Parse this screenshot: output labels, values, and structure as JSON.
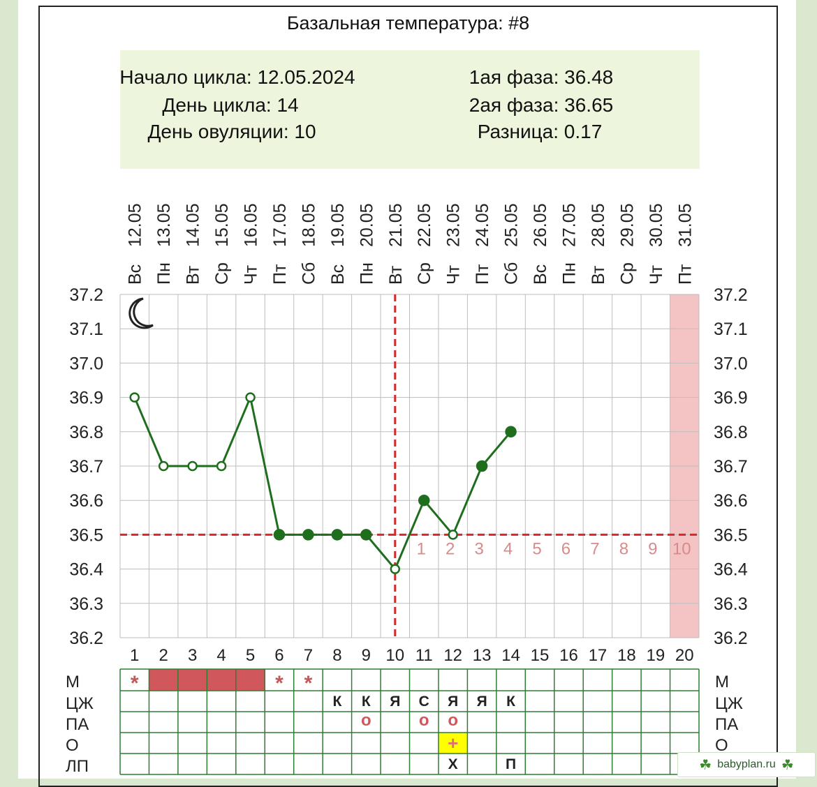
{
  "header": {
    "title": "Базальная температура: #8",
    "cycle_start": "Начало цикла: 12.05.2024",
    "cycle_day": "День цикла: 14",
    "ovulation_day": "День овуляции: 10",
    "phase1": "1ая фаза: 36.48",
    "phase2": "2ая фаза: 36.65",
    "difference": "Разница: 0.17"
  },
  "chart_data": {
    "type": "line",
    "title": "Базальная температура: #8",
    "dates": [
      "12.05",
      "13.05",
      "14.05",
      "15.05",
      "16.05",
      "17.05",
      "18.05",
      "19.05",
      "20.05",
      "21.05",
      "22.05",
      "23.05",
      "24.05",
      "25.05",
      "26.05",
      "27.05",
      "28.05",
      "29.05",
      "30.05",
      "31.05"
    ],
    "weekdays": [
      "Вс",
      "Пн",
      "Вт",
      "Ср",
      "Чт",
      "Пт",
      "Сб",
      "Вс",
      "Пн",
      "Вт",
      "Ср",
      "Чт",
      "Пт",
      "Сб",
      "Вс",
      "Пн",
      "Вт",
      "Ср",
      "Чт",
      "Пт"
    ],
    "days": [
      "1",
      "2",
      "3",
      "4",
      "5",
      "6",
      "7",
      "8",
      "9",
      "10",
      "11",
      "12",
      "13",
      "14",
      "15",
      "16",
      "17",
      "18",
      "19",
      "20"
    ],
    "y_ticks": [
      "37.2",
      "37.1",
      "37.0",
      "36.9",
      "36.8",
      "36.7",
      "36.6",
      "36.5",
      "36.4",
      "36.3",
      "36.2"
    ],
    "ylim": [
      36.2,
      37.2
    ],
    "series": [
      {
        "x": [
          1,
          2,
          3,
          4,
          5,
          6,
          7,
          8,
          9,
          10,
          11,
          12,
          13,
          14
        ],
        "values": [
          36.9,
          36.7,
          36.7,
          36.7,
          36.9,
          36.5,
          36.5,
          36.5,
          36.5,
          36.4,
          36.6,
          36.5,
          36.7,
          36.8
        ],
        "marker": [
          "open",
          "open",
          "open",
          "open",
          "open",
          "filled",
          "filled",
          "filled",
          "filled",
          "open",
          "filled",
          "open",
          "filled",
          "filled"
        ],
        "color": "#1e6e1e"
      }
    ],
    "cover_line": 36.5,
    "ovulation_day": 10,
    "luteal_labels": [
      "1",
      "2",
      "3",
      "4",
      "5",
      "6",
      "7",
      "8",
      "9",
      "10"
    ],
    "luteal_start_day": 11,
    "highlight_day": 20,
    "grid": true,
    "line_color": "#d62a2a",
    "highlight_color": "#f4c4c4"
  },
  "table": {
    "row_labels": [
      "М",
      "ЦЖ",
      "ПА",
      "О",
      "ЛП"
    ],
    "rows": {
      "М": [
        "*",
        "bar",
        "bar",
        "bar",
        "bar",
        "*",
        "*",
        "",
        "",
        "",
        "",
        "",
        "",
        "",
        "",
        "",
        "",
        "",
        "",
        ""
      ],
      "ЦЖ": [
        "",
        "",
        "",
        "",
        "",
        "",
        "",
        "К",
        "К",
        "Я",
        "С",
        "Я",
        "Я",
        "К",
        "",
        "",
        "",
        "",
        "",
        ""
      ],
      "ПА": [
        "",
        "",
        "",
        "",
        "",
        "",
        "",
        "",
        "о",
        "",
        "о",
        "о",
        "",
        "",
        "",
        "",
        "",
        "",
        "",
        ""
      ],
      "О": [
        "",
        "",
        "",
        "",
        "",
        "",
        "",
        "",
        "",
        "",
        "",
        "+",
        "",
        "",
        "",
        "",
        "",
        "",
        "",
        ""
      ],
      "ЛП": [
        "",
        "",
        "",
        "",
        "",
        "",
        "",
        "",
        "",
        "",
        "",
        "Х",
        "",
        "П",
        "",
        "",
        "",
        "",
        "",
        ""
      ]
    },
    "menstruation_color": "#d0585c",
    "ovulation_test_highlight": "#ffff00"
  },
  "watermark": {
    "text": "babyplan.ru",
    "icon": "clover-icon"
  }
}
